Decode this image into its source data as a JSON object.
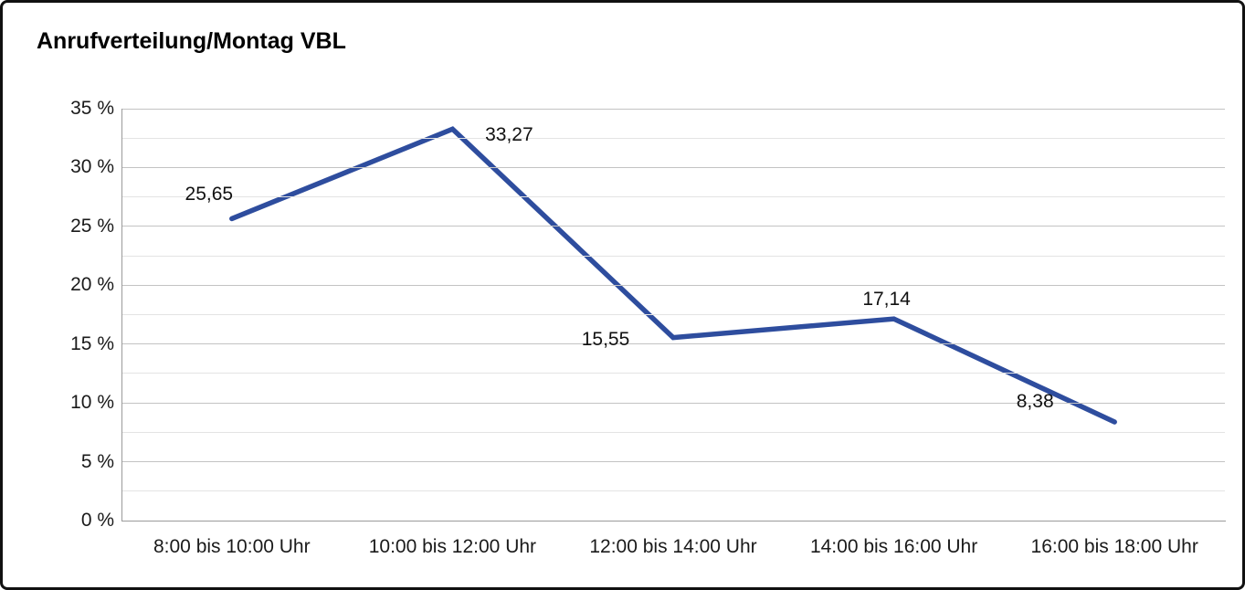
{
  "chart_data": {
    "type": "line",
    "title": "Anrufverteilung/Montag VBL",
    "categories": [
      "8:00 bis 10:00 Uhr",
      "10:00 bis 12:00 Uhr",
      "12:00 bis 14:00 Uhr",
      "14:00 bis 16:00 Uhr",
      "16:00 bis 18:00 Uhr"
    ],
    "values": [
      25.65,
      33.27,
      15.55,
      17.14,
      8.38
    ],
    "value_labels": [
      "25,65",
      "33,27",
      "15,55",
      "17,14",
      "8,38"
    ],
    "xlabel": "",
    "ylabel": "",
    "ylim": [
      0,
      35
    ],
    "ytick_step": 5,
    "ytick_labels": [
      "0 %",
      "5 %",
      "10 %",
      "15 %",
      "20 %",
      "25 %",
      "30 %",
      "35 %"
    ],
    "grid": "horizontal-major-and-minor",
    "legend": "none",
    "colors": {
      "line": "#2e4d9e",
      "grid_major": "#c3c3c3",
      "grid_minor": "#e4e4e4",
      "axis": "#9a9a9a",
      "text": "#1a1a1a",
      "background": "#ffffff",
      "frame_border": "#111111"
    }
  }
}
